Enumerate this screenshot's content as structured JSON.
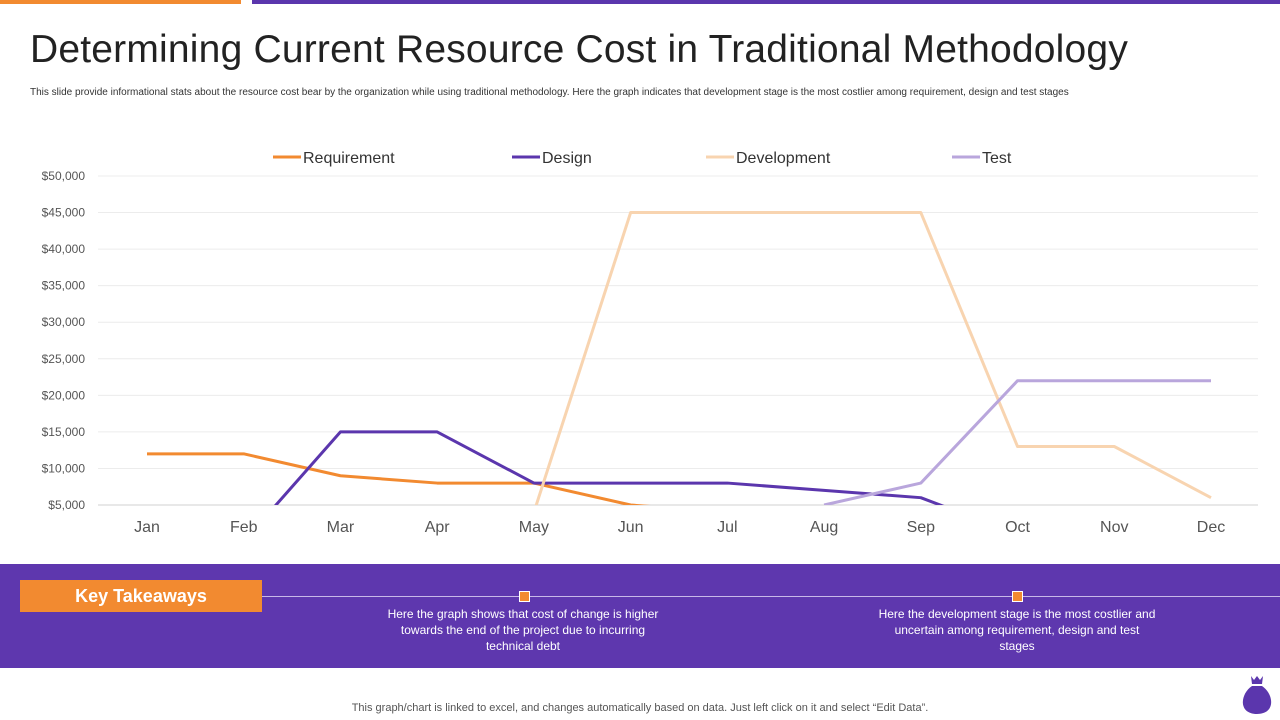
{
  "title": "Determining Current Resource Cost in Traditional Methodology",
  "subtitle": "This slide provide informational stats about the resource cost bear by the organization while using traditional methodology.  Here the graph indicates that development stage is the most costlier among requirement, design and test stages",
  "chart_data": {
    "type": "line",
    "categories": [
      "Jan",
      "Feb",
      "Mar",
      "Apr",
      "May",
      "Jun",
      "Jul",
      "Aug",
      "Sep",
      "Oct",
      "Nov",
      "Dec"
    ],
    "ylim": [
      5000,
      50000
    ],
    "yticks": [
      "$5,000",
      "$10,000",
      "$15,000",
      "$20,000",
      "$25,000",
      "$30,000",
      "$35,000",
      "$40,000",
      "$45,000",
      "$50,000"
    ],
    "grid": true,
    "legend": "top",
    "series": [
      {
        "name": "Requirement",
        "color": "#f28a30",
        "values": [
          12000,
          12000,
          9000,
          8000,
          8000,
          5000,
          4000,
          null,
          null,
          null,
          null,
          null
        ]
      },
      {
        "name": "Design",
        "color": "#5b36ad",
        "values": [
          null,
          0,
          15000,
          15000,
          8000,
          8000,
          8000,
          7000,
          6000,
          1000,
          null,
          null
        ]
      },
      {
        "name": "Development",
        "color": "#f8d4b0",
        "values": [
          null,
          null,
          null,
          null,
          4000,
          45000,
          45000,
          45000,
          45000,
          13000,
          13000,
          6000
        ]
      },
      {
        "name": "Test",
        "color": "#b9a6dc",
        "values": [
          null,
          null,
          null,
          null,
          null,
          null,
          null,
          5000,
          8000,
          22000,
          22000,
          22000
        ]
      }
    ]
  },
  "takeaways": {
    "label": "Key Takeaways",
    "items": [
      "Here the graph  shows that cost of change is higher towards  the end of the project due to incurring technical debt",
      "Here the development  stage is the most costlier and uncertain among requirement,  design and test stages"
    ]
  },
  "footer": "This graph/chart is linked to excel,  and changes automatically based on data. Just left click on it and select “Edit Data”.",
  "icons": {
    "corner": "money-bag-icon"
  }
}
